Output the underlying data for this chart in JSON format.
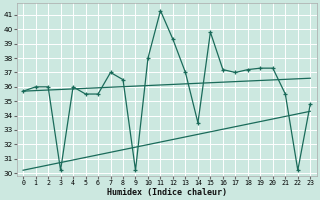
{
  "xlabel": "Humidex (Indice chaleur)",
  "bg_color": "#cce8e0",
  "grid_color": "#b0d8d0",
  "line_color": "#1a6b5a",
  "ylim": [
    29.8,
    41.8
  ],
  "xlim": [
    -0.5,
    23.5
  ],
  "yticks": [
    30,
    31,
    32,
    33,
    34,
    35,
    36,
    37,
    38,
    39,
    40,
    41
  ],
  "xticks": [
    0,
    1,
    2,
    3,
    4,
    5,
    6,
    7,
    8,
    9,
    10,
    11,
    12,
    13,
    14,
    15,
    16,
    17,
    18,
    19,
    20,
    21,
    22,
    23
  ],
  "series1_x": [
    0,
    1,
    2,
    3,
    4,
    5,
    6,
    7,
    8,
    9,
    10,
    11,
    12,
    13,
    14,
    15,
    16,
    17,
    18,
    19,
    20,
    21,
    22,
    23
  ],
  "series1_y": [
    35.7,
    36.0,
    36.0,
    30.2,
    36.0,
    35.5,
    35.5,
    37.0,
    36.5,
    30.2,
    38.0,
    41.3,
    39.3,
    37.0,
    33.5,
    39.8,
    37.2,
    37.0,
    37.2,
    37.3,
    37.3,
    35.5,
    30.2,
    34.8
  ],
  "series2_x": [
    0,
    23
  ],
  "series2_y": [
    35.7,
    36.6
  ],
  "series3_x": [
    0,
    23
  ],
  "series3_y": [
    30.2,
    34.3
  ]
}
